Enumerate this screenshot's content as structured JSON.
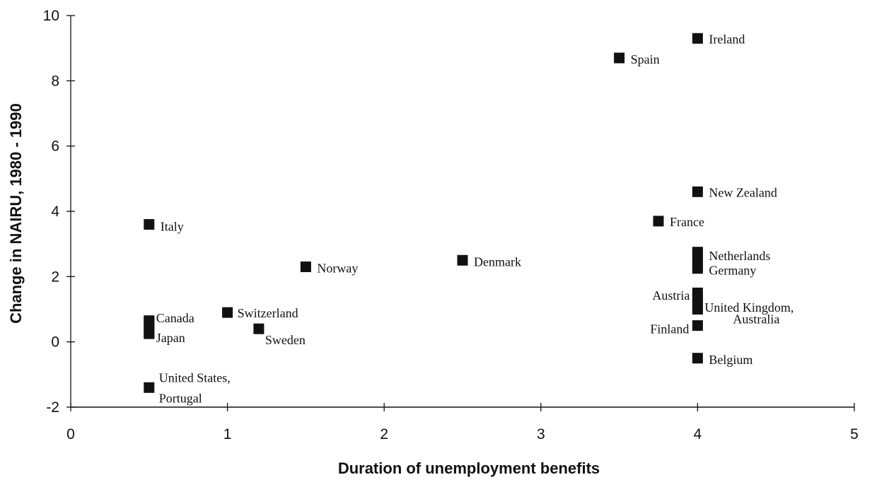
{
  "chart_data": {
    "type": "scatter",
    "title": "",
    "xlabel": "Duration of unemployment benefits",
    "ylabel": "Change in NAIRU, 1980 - 1990",
    "xlim": [
      0,
      5
    ],
    "ylim": [
      -2,
      10
    ],
    "xticks": [
      0,
      1,
      2,
      3,
      4,
      5
    ],
    "yticks": [
      -2,
      0,
      2,
      4,
      6,
      8,
      10
    ],
    "grid": false,
    "legend": "none",
    "marker": "filled-square",
    "colors": {
      "marker": "#111111",
      "axis": "#111111"
    },
    "points": [
      {
        "x": 4.0,
        "y": 9.3,
        "label": "Ireland"
      },
      {
        "x": 3.5,
        "y": 8.7,
        "label": "Spain"
      },
      {
        "x": 4.0,
        "y": 4.6,
        "label": "New Zealand"
      },
      {
        "x": 3.75,
        "y": 3.7,
        "label": "France"
      },
      {
        "x": 0.5,
        "y": 3.6,
        "label": "Italy"
      },
      {
        "x": 4.0,
        "y": 2.7,
        "label": "Netherlands"
      },
      {
        "x": 2.5,
        "y": 2.5,
        "label": "Denmark"
      },
      {
        "x": 1.5,
        "y": 2.3,
        "label": "Norway"
      },
      {
        "x": 4.0,
        "y": 2.3,
        "label": "Germany"
      },
      {
        "x": 4.0,
        "y": 1.4,
        "label": "Austria"
      },
      {
        "x": 4.0,
        "y": 1.1,
        "label": "United Kingdom,"
      },
      {
        "x": 1.0,
        "y": 0.9,
        "label": "Switzerland"
      },
      {
        "x": 0.5,
        "y": 0.6,
        "label": "Canada"
      },
      {
        "x": 4.0,
        "y": 0.5,
        "label": "Australia"
      },
      {
        "x": 4.0,
        "y": 0.5,
        "label": "Finland"
      },
      {
        "x": 1.2,
        "y": 0.4,
        "label": "Sweden"
      },
      {
        "x": 0.5,
        "y": 0.3,
        "label": "Japan"
      },
      {
        "x": 4.0,
        "y": -0.5,
        "label": "Belgium"
      },
      {
        "x": 0.5,
        "y": -1.4,
        "label": "United States,"
      },
      {
        "x": 0.5,
        "y": -1.4,
        "label": "Portugal"
      }
    ]
  }
}
